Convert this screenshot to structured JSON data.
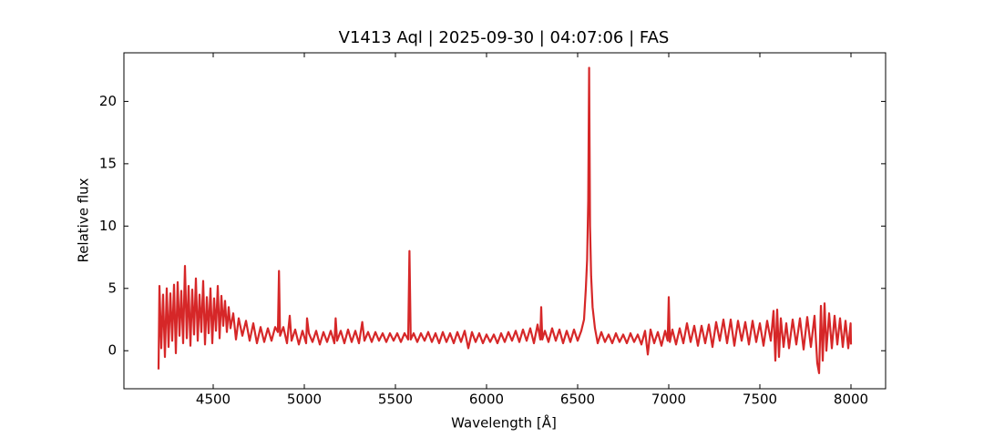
{
  "chart_data": {
    "type": "line",
    "title": "V1413 Aql | 2025-09-30 | 04:07:06 | FAS",
    "x_label": "Wavelength [Å]",
    "y_label": "Relative flux",
    "xlim": [
      4010,
      8190
    ],
    "ylim": [
      -3.05,
      23.9
    ],
    "xticks": [
      4500,
      5000,
      5500,
      6000,
      6500,
      7000,
      7500,
      8000
    ],
    "yticks": [
      0,
      5,
      10,
      15,
      20
    ],
    "x": [
      4200,
      4205,
      4215,
      4225,
      4235,
      4245,
      4255,
      4265,
      4275,
      4285,
      4295,
      4305,
      4315,
      4325,
      4335,
      4345,
      4355,
      4365,
      4375,
      4385,
      4395,
      4405,
      4415,
      4425,
      4435,
      4445,
      4455,
      4465,
      4475,
      4485,
      4495,
      4505,
      4515,
      4525,
      4535,
      4545,
      4555,
      4565,
      4575,
      4585,
      4595,
      4610,
      4625,
      4640,
      4660,
      4680,
      4700,
      4720,
      4740,
      4760,
      4780,
      4800,
      4820,
      4840,
      4855,
      4861,
      4867,
      4885,
      4905,
      4920,
      4930,
      4950,
      4970,
      4990,
      5010,
      5015,
      5025,
      5045,
      5065,
      5085,
      5105,
      5125,
      5145,
      5165,
      5172,
      5180,
      5200,
      5220,
      5240,
      5260,
      5280,
      5300,
      5318,
      5330,
      5350,
      5370,
      5390,
      5410,
      5430,
      5450,
      5470,
      5490,
      5510,
      5530,
      5550,
      5570,
      5577,
      5584,
      5600,
      5620,
      5640,
      5660,
      5680,
      5700,
      5720,
      5740,
      5760,
      5780,
      5800,
      5820,
      5840,
      5860,
      5880,
      5900,
      5920,
      5940,
      5960,
      5980,
      6000,
      6020,
      6040,
      6060,
      6080,
      6100,
      6120,
      6140,
      6160,
      6180,
      6200,
      6220,
      6240,
      6260,
      6280,
      6295,
      6300,
      6306,
      6320,
      6340,
      6360,
      6380,
      6400,
      6420,
      6440,
      6460,
      6480,
      6500,
      6520,
      6535,
      6545,
      6552,
      6558,
      6563,
      6568,
      6574,
      6582,
      6595,
      6610,
      6630,
      6650,
      6670,
      6690,
      6710,
      6730,
      6750,
      6770,
      6790,
      6810,
      6830,
      6850,
      6870,
      6885,
      6900,
      6920,
      6940,
      6960,
      6980,
      6994,
      7000,
      7006,
      7020,
      7040,
      7060,
      7080,
      7100,
      7120,
      7140,
      7160,
      7180,
      7200,
      7220,
      7240,
      7260,
      7280,
      7300,
      7320,
      7340,
      7360,
      7380,
      7400,
      7420,
      7440,
      7460,
      7480,
      7500,
      7520,
      7540,
      7560,
      7575,
      7585,
      7595,
      7605,
      7615,
      7630,
      7645,
      7660,
      7680,
      7700,
      7720,
      7740,
      7760,
      7780,
      7800,
      7815,
      7825,
      7835,
      7845,
      7855,
      7865,
      7880,
      7895,
      7910,
      7925,
      7940,
      7955,
      7970,
      7985,
      7998,
      8000
    ],
    "series": [
      {
        "color": "#d62728",
        "values": [
          -1.5,
          5.2,
          0.2,
          4.5,
          -0.5,
          5.0,
          0.3,
          4.6,
          0.8,
          5.3,
          -0.2,
          5.5,
          1.2,
          4.8,
          0.6,
          6.8,
          1.0,
          5.2,
          0.4,
          4.9,
          1.3,
          5.8,
          0.8,
          4.5,
          1.5,
          5.6,
          0.5,
          4.3,
          1.4,
          5.0,
          0.6,
          4.2,
          1.6,
          5.2,
          1.0,
          4.4,
          2.0,
          4.0,
          1.5,
          3.5,
          1.8,
          3.0,
          0.9,
          2.6,
          1.2,
          2.4,
          0.8,
          2.2,
          0.6,
          1.9,
          0.7,
          1.8,
          0.8,
          1.9,
          1.5,
          6.4,
          1.2,
          1.9,
          0.6,
          2.8,
          0.8,
          1.7,
          0.5,
          1.6,
          0.6,
          2.6,
          1.4,
          0.7,
          1.6,
          0.5,
          1.5,
          0.7,
          1.6,
          0.6,
          2.6,
          0.8,
          1.6,
          0.6,
          1.7,
          0.7,
          1.6,
          0.6,
          2.3,
          0.8,
          1.5,
          0.7,
          1.5,
          0.8,
          1.4,
          0.7,
          1.4,
          0.8,
          1.4,
          0.7,
          1.4,
          0.9,
          8.0,
          0.9,
          1.4,
          0.7,
          1.4,
          0.8,
          1.5,
          0.7,
          1.4,
          0.6,
          1.5,
          0.7,
          1.4,
          0.6,
          1.5,
          0.7,
          1.6,
          0.2,
          1.5,
          0.7,
          1.4,
          0.6,
          1.3,
          0.7,
          1.3,
          0.6,
          1.4,
          0.7,
          1.5,
          0.8,
          1.6,
          0.7,
          1.7,
          0.8,
          1.8,
          0.6,
          2.1,
          0.9,
          3.5,
          0.9,
          1.6,
          0.7,
          1.8,
          0.8,
          1.7,
          0.6,
          1.6,
          0.7,
          1.7,
          0.8,
          1.6,
          2.5,
          5.0,
          7.3,
          12.0,
          22.7,
          10.0,
          6.0,
          3.5,
          1.8,
          0.6,
          1.5,
          0.7,
          1.3,
          0.6,
          1.4,
          0.7,
          1.3,
          0.6,
          1.4,
          0.7,
          1.3,
          0.5,
          1.6,
          -0.3,
          1.7,
          0.6,
          1.5,
          0.4,
          1.6,
          0.8,
          4.3,
          0.7,
          1.7,
          0.5,
          1.8,
          0.6,
          2.2,
          0.7,
          2.0,
          0.4,
          2.0,
          0.6,
          2.1,
          0.3,
          2.3,
          0.8,
          2.5,
          0.6,
          2.5,
          0.4,
          2.4,
          0.8,
          2.3,
          0.5,
          2.4,
          0.7,
          2.2,
          0.4,
          2.4,
          0.8,
          3.2,
          -0.8,
          3.3,
          -0.5,
          2.6,
          0.3,
          2.2,
          0.2,
          2.5,
          0.5,
          2.6,
          0.1,
          2.7,
          0.3,
          2.8,
          -1.0,
          -1.8,
          3.6,
          -0.8,
          3.8,
          0.0,
          3.0,
          0.2,
          2.8,
          0.5,
          2.6,
          0.3,
          2.4,
          0.2,
          2.2,
          0.5
        ]
      }
    ]
  }
}
